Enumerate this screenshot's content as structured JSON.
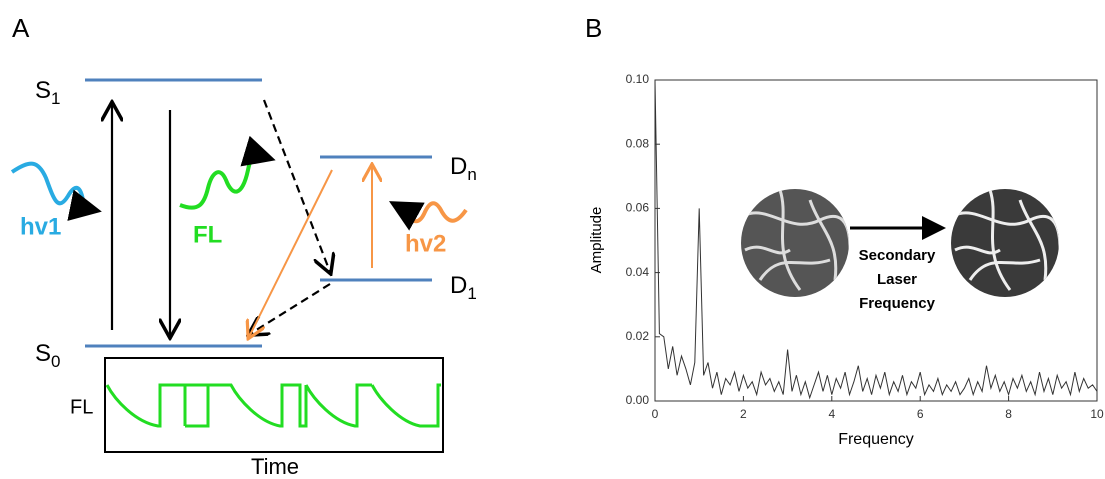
{
  "panel_a": {
    "label": "A",
    "s1": {
      "main": "S",
      "sub": "1"
    },
    "s0": {
      "main": "S",
      "sub": "0"
    },
    "dn": {
      "main": "D",
      "sub": "n"
    },
    "d1": {
      "main": "D",
      "sub": "1"
    },
    "hv1": "hv1",
    "fl": "FL",
    "hv2": "hv2",
    "box_ylabel": "FL",
    "box_xlabel": "Time"
  },
  "panel_b": {
    "label": "B",
    "inset_text": [
      "Secondary",
      "Laser",
      "Frequency"
    ]
  },
  "chart_data": {
    "type": "line",
    "xlabel": "Frequency",
    "ylabel": "Amplitude",
    "color": "#333333",
    "xlim": [
      0,
      10
    ],
    "ylim": [
      0,
      0.1
    ],
    "xticks": [
      0,
      2,
      4,
      6,
      8,
      10
    ],
    "yticks": [
      {
        "value": 0,
        "label": "0.00"
      },
      {
        "value": 0.02,
        "label": "0.02"
      },
      {
        "value": 0.04,
        "label": "0.04"
      },
      {
        "value": 0.06,
        "label": "0.06"
      },
      {
        "value": 0.08,
        "label": "0.08"
      },
      {
        "value": 0.1,
        "label": "0.10"
      }
    ],
    "x": [
      0,
      0.1,
      0.2,
      0.3,
      0.4,
      0.5,
      0.6,
      0.7,
      0.8,
      0.9,
      1,
      1.1,
      1.2,
      1.3,
      1.4,
      1.5,
      1.6,
      1.7,
      1.8,
      1.9,
      2,
      2.1,
      2.2,
      2.3,
      2.4,
      2.5,
      2.6,
      2.7,
      2.8,
      2.9,
      3,
      3.1,
      3.2,
      3.3,
      3.4,
      3.5,
      3.6,
      3.7,
      3.8,
      3.9,
      4,
      4.1,
      4.2,
      4.3,
      4.4,
      4.5,
      4.6,
      4.7,
      4.8,
      4.9,
      5,
      5.1,
      5.2,
      5.3,
      5.4,
      5.5,
      5.6,
      5.7,
      5.8,
      5.9,
      6,
      6.1,
      6.2,
      6.3,
      6.4,
      6.5,
      6.6,
      6.7,
      6.8,
      6.9,
      7,
      7.1,
      7.2,
      7.3,
      7.4,
      7.5,
      7.6,
      7.7,
      7.8,
      7.9,
      8,
      8.1,
      8.2,
      8.3,
      8.4,
      8.5,
      8.6,
      8.7,
      8.8,
      8.9,
      9,
      9.1,
      9.2,
      9.3,
      9.4,
      9.5,
      9.6,
      9.7,
      9.8,
      9.9,
      10
    ],
    "values": [
      0.1,
      0.021,
      0.02,
      0.01,
      0.017,
      0.008,
      0.014,
      0.01,
      0.005,
      0.012,
      0.06,
      0.008,
      0.012,
      0.004,
      0.009,
      0.002,
      0.007,
      0.005,
      0.009,
      0.003,
      0.008,
      0.004,
      0.006,
      0.002,
      0.009,
      0.005,
      0.007,
      0.003,
      0.006,
      0.002,
      0.016,
      0.003,
      0.008,
      0.002,
      0.006,
      0.001,
      0.005,
      0.009,
      0.003,
      0.008,
      0.002,
      0.007,
      0.004,
      0.009,
      0.002,
      0.006,
      0.011,
      0.003,
      0.007,
      0.002,
      0.008,
      0.004,
      0.009,
      0.002,
      0.006,
      0.003,
      0.008,
      0.002,
      0.006,
      0.004,
      0.009,
      0.002,
      0.005,
      0.003,
      0.007,
      0.002,
      0.005,
      0.003,
      0.006,
      0.002,
      0.004,
      0.007,
      0.002,
      0.006,
      0.003,
      0.011,
      0.004,
      0.008,
      0.003,
      0.006,
      0.002,
      0.007,
      0.004,
      0.008,
      0.003,
      0.006,
      0.002,
      0.009,
      0.003,
      0.007,
      0.002,
      0.008,
      0.004,
      0.006,
      0.002,
      0.009,
      0.003,
      0.007,
      0.004,
      0.005,
      0.003
    ]
  }
}
